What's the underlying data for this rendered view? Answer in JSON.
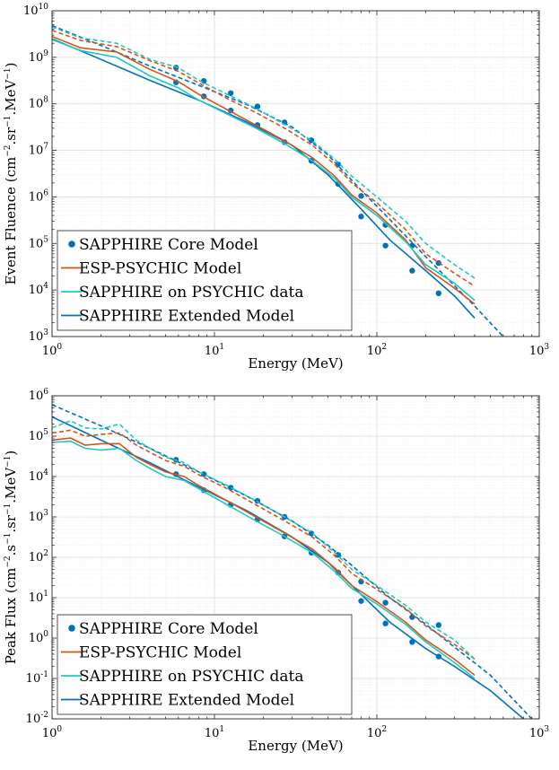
{
  "colors": {
    "core": "#0072BD",
    "esp": "#D95319",
    "psychic": "#1FC9C1",
    "extended": "#0072BD"
  },
  "legend_labels": {
    "core": "SAPPHIRE Core Model",
    "esp": "ESP-PSYCHIC Model",
    "psychic": "SAPPHIRE on PSYCHIC data",
    "extended": "SAPPHIRE Extended Model"
  },
  "chart_data": [
    {
      "type": "line",
      "xscale": "log",
      "yscale": "log",
      "xlabel": "Energy (MeV)",
      "ylabel_base": "Event Fluence (cm",
      "ylabel_exp1": "−2",
      "ylabel_mid": ".sr",
      "ylabel_exp2": "−1",
      "ylabel_mid2": ".MeV",
      "ylabel_exp3": "−1",
      "ylabel_end": ")",
      "xlim": [
        1,
        1000
      ],
      "ylim": [
        1000,
        10000000000
      ],
      "xtick_values": [
        1,
        10,
        100,
        1000
      ],
      "xtick_labels": [
        {
          "base": "10",
          "exp": "0"
        },
        {
          "base": "10",
          "exp": "1"
        },
        {
          "base": "10",
          "exp": "2"
        },
        {
          "base": "10",
          "exp": "3"
        }
      ],
      "ytick_values": [
        1000,
        10000,
        100000,
        1000000,
        10000000,
        100000000,
        1000000000,
        10000000000
      ],
      "ytick_labels": [
        {
          "base": "10",
          "exp": "3"
        },
        {
          "base": "10",
          "exp": "4"
        },
        {
          "base": "10",
          "exp": "5"
        },
        {
          "base": "10",
          "exp": "6"
        },
        {
          "base": "10",
          "exp": "7"
        },
        {
          "base": "10",
          "exp": "8"
        },
        {
          "base": "10",
          "exp": "9"
        },
        {
          "base": "10",
          "exp": "10"
        }
      ],
      "grid": true,
      "legend_position": "bottom-left",
      "series": [
        {
          "name": "Extended mean",
          "color_key": "extended",
          "style": "solid",
          "x": [
            1,
            2,
            4,
            8,
            16,
            30,
            50,
            80,
            120,
            200,
            300,
            400
          ],
          "y": [
            2500000000.0,
            900000000.0,
            320000000.0,
            120000000.0,
            40000000.0,
            13000000.0,
            3000000.0,
            550000.0,
            120000.0,
            26000.0,
            7500.0,
            2500.0
          ]
        },
        {
          "name": "Extended upper",
          "color_key": "extended",
          "style": "dashed",
          "x": [
            1,
            2,
            4,
            8,
            16,
            30,
            50,
            80,
            120,
            200,
            400,
            600
          ],
          "y": [
            4800000000.0,
            1800000000.0,
            650000000.0,
            250000000.0,
            95000000.0,
            32000000.0,
            8000000.0,
            1400000.0,
            330000.0,
            52000.0,
            4500.0,
            1000
          ]
        },
        {
          "name": "Core mean",
          "color_key": "core",
          "style": "markers",
          "x": [
            5.8,
            8.6,
            12.6,
            18.4,
            27,
            39.5,
            57.8,
            80,
            113,
            165,
            240
          ],
          "y": [
            290000000.0,
            145000000.0,
            72000000.0,
            35000000.0,
            15000000.0,
            6000000.0,
            1900000.0,
            380000.0,
            90000.0,
            26000.0,
            8500.0
          ]
        },
        {
          "name": "Core upper",
          "color_key": "core",
          "style": "markers",
          "x": [
            5.8,
            8.6,
            12.6,
            18.4,
            27,
            39.5,
            57.8,
            80,
            113,
            165,
            240
          ],
          "y": [
            600000000.0,
            310000000.0,
            170000000.0,
            88000000.0,
            40000000.0,
            16500000.0,
            5000000.0,
            1050000.0,
            250000.0,
            90000.0,
            38000.0
          ]
        },
        {
          "name": "ESP mean",
          "color_key": "esp",
          "style": "solid",
          "x": [
            1,
            1.5,
            2.5,
            4,
            6,
            8,
            12,
            18,
            27,
            40,
            55,
            70,
            100,
            150,
            200,
            300,
            400
          ],
          "y": [
            2800000000.0,
            1600000000.0,
            1300000000.0,
            550000000.0,
            300000000.0,
            160000000.0,
            75000000.0,
            35000000.0,
            16000000.0,
            7000000.0,
            2800000.0,
            1100000.0,
            450000.0,
            120000.0,
            30000.0,
            11000.0,
            5000.0
          ]
        },
        {
          "name": "ESP upper",
          "color_key": "esp",
          "style": "dashed",
          "x": [
            1,
            1.5,
            2.5,
            4,
            6,
            8,
            12,
            18,
            27,
            40,
            55,
            70,
            100,
            150,
            200,
            300,
            400
          ],
          "y": [
            3800000000.0,
            2300000000.0,
            1700000000.0,
            850000000.0,
            500000000.0,
            280000000.0,
            130000000.0,
            65000000.0,
            30000000.0,
            13000000.0,
            5000000.0,
            2000000.0,
            750000.0,
            200000.0,
            60000.0,
            23000.0,
            12000.0
          ]
        },
        {
          "name": "PSYCHIC mean",
          "color_key": "psychic",
          "style": "solid",
          "x": [
            1,
            1.5,
            2.5,
            4,
            6,
            8,
            12,
            18,
            27,
            40,
            55,
            70,
            100,
            150,
            200,
            300,
            400
          ],
          "y": [
            2400000000.0,
            1400000000.0,
            1000000000.0,
            400000000.0,
            220000000.0,
            120000000.0,
            60000000.0,
            30000000.0,
            14000000.0,
            6000000.0,
            2500000.0,
            1000000.0,
            400000.0,
            110000.0,
            35000.0,
            14000.0,
            6000.0
          ]
        },
        {
          "name": "PSYCHIC upper",
          "color_key": "psychic",
          "style": "dashed",
          "x": [
            1,
            1.5,
            2.5,
            4,
            6,
            8,
            12,
            18,
            27,
            40,
            55,
            70,
            100,
            150,
            200,
            300,
            400
          ],
          "y": [
            4500000000.0,
            2600000000.0,
            2000000000.0,
            900000000.0,
            600000000.0,
            320000000.0,
            160000000.0,
            80000000.0,
            36000000.0,
            16000000.0,
            6500000.0,
            2800000.0,
            1000000.0,
            300000.0,
            100000.0,
            35000.0,
            18000.0
          ]
        }
      ]
    },
    {
      "type": "line",
      "xscale": "log",
      "yscale": "log",
      "xlabel": "Energy (MeV)",
      "ylabel_base": "Peak Flux (cm",
      "ylabel_exp1": "−2",
      "ylabel_mid": ".s",
      "ylabel_exp2": "−1",
      "ylabel_mid2": ".sr",
      "ylabel_exp3": "−1",
      "ylabel_end": ".MeV",
      "ylabel_exp4": "−1",
      "ylabel_end2": ")",
      "xlim": [
        1,
        1000
      ],
      "ylim": [
        0.01,
        1000000
      ],
      "xtick_values": [
        1,
        10,
        100,
        1000
      ],
      "xtick_labels": [
        {
          "base": "10",
          "exp": "0"
        },
        {
          "base": "10",
          "exp": "1"
        },
        {
          "base": "10",
          "exp": "2"
        },
        {
          "base": "10",
          "exp": "3"
        }
      ],
      "ytick_values": [
        0.01,
        0.1,
        1,
        10,
        100,
        1000,
        10000,
        100000,
        1000000
      ],
      "ytick_labels": [
        {
          "base": "10",
          "exp": "-2"
        },
        {
          "base": "10",
          "exp": "-1"
        },
        {
          "base": "10",
          "exp": "0"
        },
        {
          "base": "10",
          "exp": "1"
        },
        {
          "base": "10",
          "exp": "2"
        },
        {
          "base": "10",
          "exp": "3"
        },
        {
          "base": "10",
          "exp": "4"
        },
        {
          "base": "10",
          "exp": "5"
        },
        {
          "base": "10",
          "exp": "6"
        }
      ],
      "grid": true,
      "legend_position": "bottom-left",
      "series": [
        {
          "name": "Extended mean",
          "color_key": "extended",
          "style": "solid",
          "x": [
            1,
            2,
            4,
            8,
            16,
            30,
            50,
            80,
            120,
            200,
            300,
            500,
            800
          ],
          "y": [
            300000.0,
            80000.0,
            22000.0,
            5500.0,
            1400.0,
            320.0,
            75,
            12,
            2.5,
            0.55,
            0.2,
            0.05,
            0.01
          ]
        },
        {
          "name": "Extended upper",
          "color_key": "extended",
          "style": "dashed",
          "x": [
            1,
            2,
            4,
            8,
            16,
            30,
            50,
            80,
            120,
            200,
            300,
            500,
            900
          ],
          "y": [
            600000.0,
            180000.0,
            50000.0,
            13000.0,
            3200.0,
            800.0,
            200.0,
            40,
            10,
            2.2,
            0.6,
            0.12,
            0.01
          ]
        },
        {
          "name": "Core mean",
          "color_key": "core",
          "style": "markers",
          "x": [
            5.8,
            8.6,
            12.6,
            18.4,
            27,
            39.5,
            57.8,
            80,
            113,
            165,
            240
          ],
          "y": [
            11500.0,
            4600.0,
            2000.0,
            860.0,
            330.0,
            130.0,
            42,
            8.3,
            2.3,
            0.8,
            0.35
          ]
        },
        {
          "name": "Core upper",
          "color_key": "core",
          "style": "markers",
          "x": [
            5.8,
            8.6,
            12.6,
            18.4,
            27,
            39.5,
            57.8,
            80,
            113,
            165,
            240
          ],
          "y": [
            26000.0,
            11500.0,
            5300.0,
            2500.0,
            1000.0,
            390.0,
            115.0,
            25,
            7.5,
            3.3,
            2.1
          ]
        },
        {
          "name": "ESP mean",
          "color_key": "esp",
          "style": "solid",
          "x": [
            1,
            1.3,
            1.6,
            2,
            2.6,
            3.3,
            4,
            5,
            6.5,
            8,
            12,
            18,
            27,
            40,
            55,
            70,
            100,
            150,
            200,
            300,
            400
          ],
          "y": [
            80000.0,
            90000.0,
            60000.0,
            65000.0,
            65000.0,
            30000.0,
            20000.0,
            13000.0,
            10000.0,
            6000.0,
            2500.0,
            1000.0,
            400.0,
            160.0,
            55,
            20,
            8,
            2.5,
            0.9,
            0.3,
            0.12
          ]
        },
        {
          "name": "ESP upper",
          "color_key": "esp",
          "style": "dashed",
          "x": [
            1,
            1.3,
            1.6,
            2,
            2.6,
            3.3,
            4,
            5,
            6.5,
            8,
            12,
            18,
            27,
            40,
            55,
            70,
            100,
            150,
            200,
            300,
            400
          ],
          "y": [
            120000.0,
            140000.0,
            100000.0,
            110000.0,
            120000.0,
            60000.0,
            40000.0,
            25000.0,
            18000.0,
            11000.0,
            5000.0,
            2000.0,
            800.0,
            320.0,
            110.0,
            40,
            16,
            5.5,
            2,
            0.7,
            0.3
          ]
        },
        {
          "name": "PSYCHIC mean",
          "color_key": "psychic",
          "style": "solid",
          "x": [
            1,
            1.3,
            1.6,
            2,
            2.6,
            3.3,
            4,
            5,
            6.5,
            8,
            12,
            18,
            27,
            40,
            55,
            70,
            100,
            150,
            200,
            300,
            400
          ],
          "y": [
            70000.0,
            75000.0,
            50000.0,
            45000.0,
            50000.0,
            25000.0,
            16000.0,
            10000.0,
            8000.0,
            5000.0,
            2000.0,
            800.0,
            330.0,
            130.0,
            45,
            17,
            7,
            2.2,
            0.8,
            0.25,
            0.1
          ]
        },
        {
          "name": "PSYCHIC upper",
          "color_key": "psychic",
          "style": "dashed",
          "x": [
            1,
            1.3,
            1.6,
            2,
            2.6,
            3.3,
            4,
            5,
            6.5,
            8,
            12,
            18,
            27,
            40,
            55,
            70,
            100,
            150,
            200,
            300,
            400
          ],
          "y": [
            160000.0,
            240000.0,
            160000.0,
            150000.0,
            200000.0,
            80000.0,
            50000.0,
            30000.0,
            22000.0,
            13000.0,
            6000.0,
            2500.0,
            1000.0,
            400.0,
            130.0,
            50,
            20,
            6.5,
            2.5,
            0.9,
            0.3
          ]
        }
      ]
    }
  ]
}
